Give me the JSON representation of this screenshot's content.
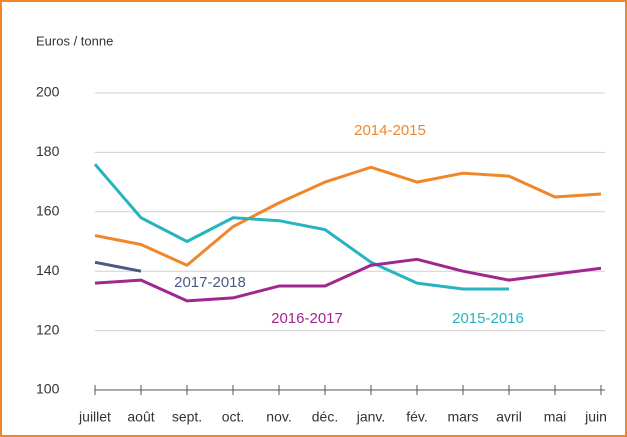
{
  "chart_data": {
    "type": "line",
    "y_label": "Euros / tonne",
    "categories": [
      "juillet",
      "août",
      "sept.",
      "oct.",
      "nov.",
      "déc.",
      "janv.",
      "fév.",
      "mars",
      "avril",
      "mai",
      "juin"
    ],
    "series": [
      {
        "name": "2014-2015",
        "color": "#f0862a",
        "values": [
          152,
          149,
          142,
          155,
          163,
          170,
          175,
          170,
          173,
          172,
          165,
          166
        ]
      },
      {
        "name": "2015-2016",
        "color": "#26b5c0",
        "values": [
          176,
          158,
          150,
          158,
          157,
          154,
          143,
          136,
          134,
          134,
          null,
          null
        ]
      },
      {
        "name": "2016-2017",
        "color": "#a0278f",
        "values": [
          136,
          137,
          130,
          131,
          135,
          135,
          142,
          144,
          140,
          137,
          139,
          141
        ]
      },
      {
        "name": "2017-2018",
        "color": "#4a5a80",
        "values": [
          143,
          140,
          null,
          null,
          null,
          null,
          null,
          null,
          null,
          null,
          null,
          null
        ]
      }
    ],
    "ylim": [
      100,
      200
    ],
    "yticks": [
      100,
      120,
      140,
      160,
      180,
      200
    ],
    "grid": true
  }
}
